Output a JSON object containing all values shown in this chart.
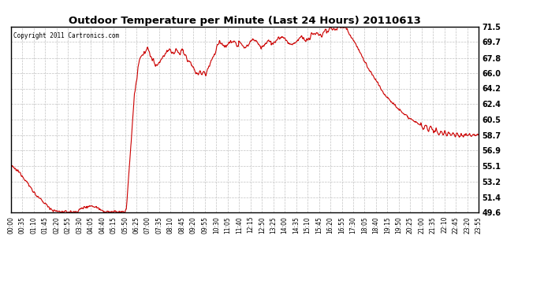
{
  "title": "Outdoor Temperature per Minute (Last 24 Hours) 20110613",
  "copyright_text": "Copyright 2011 Cartronics.com",
  "line_color": "#cc0000",
  "background_color": "#ffffff",
  "plot_bg_color": "#ffffff",
  "grid_color": "#bbbbbb",
  "yticks": [
    49.6,
    51.4,
    53.2,
    55.1,
    56.9,
    58.7,
    60.5,
    62.4,
    64.2,
    66.0,
    67.8,
    69.7,
    71.5
  ],
  "ymin": 49.6,
  "ymax": 71.5,
  "xtick_labels": [
    "00:00",
    "00:35",
    "01:10",
    "01:45",
    "02:20",
    "02:55",
    "03:30",
    "04:05",
    "04:40",
    "05:15",
    "05:50",
    "06:25",
    "07:00",
    "07:35",
    "08:10",
    "08:45",
    "09:20",
    "09:55",
    "10:30",
    "11:05",
    "11:40",
    "12:15",
    "12:50",
    "13:25",
    "14:00",
    "14:35",
    "15:10",
    "15:45",
    "16:20",
    "16:55",
    "17:30",
    "18:05",
    "18:40",
    "19:15",
    "19:50",
    "20:25",
    "21:00",
    "21:35",
    "22:10",
    "22:45",
    "23:20",
    "23:55"
  ],
  "line_width": 0.8,
  "figwidth": 6.9,
  "figheight": 3.75,
  "dpi": 100
}
